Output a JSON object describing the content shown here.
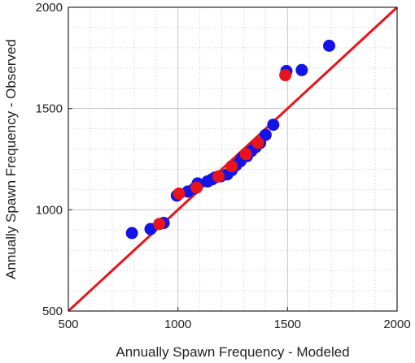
{
  "chart_data": {
    "type": "scatter",
    "xlabel": "Annually Spawn Frequency - Modeled",
    "ylabel": "Annually Spawn Frequency - Observed",
    "xlim": [
      500,
      2000
    ],
    "ylim": [
      500,
      2000
    ],
    "xticks": [
      500,
      1000,
      1500,
      2000
    ],
    "yticks": [
      500,
      1000,
      1500,
      2000
    ],
    "xtick_labels": [
      "500",
      "1000",
      "1500",
      "2000"
    ],
    "ytick_labels": [
      "500",
      "1000",
      "1500",
      "2000"
    ],
    "minor_grid_step": 100,
    "grid": true,
    "reference_line": {
      "type": "identity",
      "from": [
        500,
        500
      ],
      "to": [
        2000,
        2000
      ],
      "color": "#e8141b"
    },
    "series": [
      {
        "color": "#1414e6",
        "points": [
          [
            790,
            885
          ],
          [
            875,
            905
          ],
          [
            935,
            935
          ],
          [
            995,
            1070
          ],
          [
            1045,
            1090
          ],
          [
            1075,
            1105
          ],
          [
            1090,
            1130
          ],
          [
            1135,
            1140
          ],
          [
            1155,
            1150
          ],
          [
            1170,
            1160
          ],
          [
            1195,
            1165
          ],
          [
            1225,
            1175
          ],
          [
            1245,
            1195
          ],
          [
            1265,
            1220
          ],
          [
            1285,
            1240
          ],
          [
            1295,
            1260
          ],
          [
            1315,
            1265
          ],
          [
            1335,
            1290
          ],
          [
            1355,
            1310
          ],
          [
            1375,
            1330
          ],
          [
            1400,
            1370
          ],
          [
            1435,
            1420
          ],
          [
            1495,
            1685
          ],
          [
            1565,
            1690
          ],
          [
            1690,
            1810
          ]
        ]
      },
      {
        "color": "#e8141b",
        "points": [
          [
            915,
            930
          ],
          [
            1005,
            1080
          ],
          [
            1085,
            1110
          ],
          [
            1185,
            1165
          ],
          [
            1245,
            1215
          ],
          [
            1310,
            1275
          ],
          [
            1365,
            1330
          ],
          [
            1490,
            1665
          ]
        ]
      }
    ]
  }
}
